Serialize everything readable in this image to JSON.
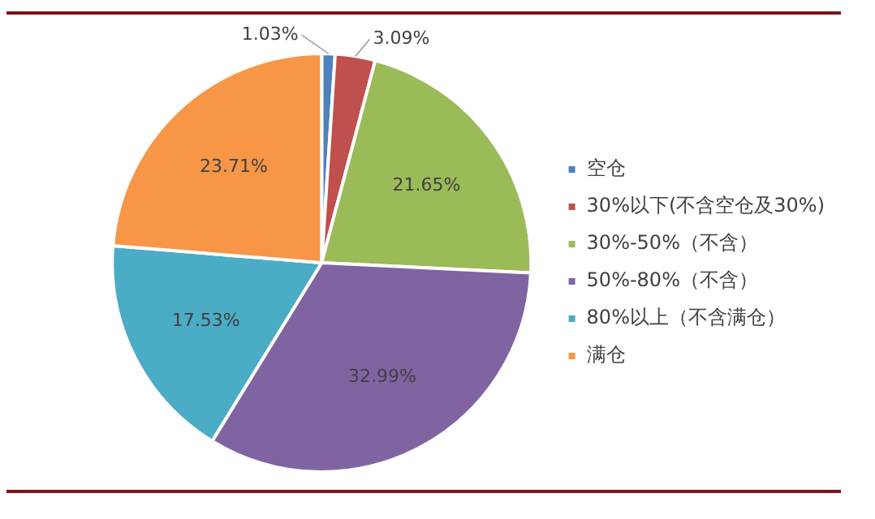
{
  "chart_data": {
    "type": "pie",
    "categories": [
      "空仓",
      "30%以下(不含空仓及30%)",
      "30%-50%（不含）",
      "50%-80%（不含）",
      "80%以上（不含满仓）",
      "满仓"
    ],
    "values": [
      1.03,
      3.09,
      21.65,
      32.99,
      17.53,
      23.71
    ],
    "value_labels": [
      "1.03%",
      "3.09%",
      "21.65%",
      "32.99%",
      "17.53%",
      "23.71%"
    ],
    "colors": [
      "#4f81bd",
      "#c0504d",
      "#9bbb59",
      "#8064a2",
      "#4bacc6",
      "#f79646"
    ],
    "legend": "right"
  }
}
